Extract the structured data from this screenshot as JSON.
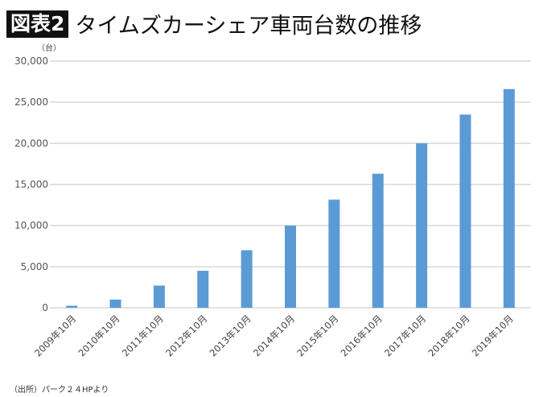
{
  "header": {
    "badge": "図表2",
    "title": "タイムズカーシェア車両台数の推移"
  },
  "unit_label": "（台）",
  "source": "（出所）パーク２４HPより",
  "chart_data": {
    "type": "bar",
    "title": "タイムズカーシェア車両台数の推移",
    "ylabel": "（台）",
    "categories": [
      "2009年10月",
      "2010年10月",
      "2011年10月",
      "2012年10月",
      "2013年10月",
      "2014年10月",
      "2015年10月",
      "2016年10月",
      "2017年10月",
      "2018年10月",
      "2019年10月"
    ],
    "values": [
      250,
      1000,
      2700,
      4500,
      7000,
      10000,
      13150,
      16300,
      20000,
      23500,
      26600
    ],
    "ylim": [
      0,
      30000
    ],
    "yticks": [
      0,
      5000,
      10000,
      15000,
      20000,
      25000,
      30000
    ],
    "ytick_labels": [
      "0",
      "5,000",
      "10,000",
      "15,000",
      "20,000",
      "25,000",
      "30,000"
    ],
    "grid": true,
    "bar_color": "#5b9bd5",
    "grid_color": "#d9d9d9"
  }
}
